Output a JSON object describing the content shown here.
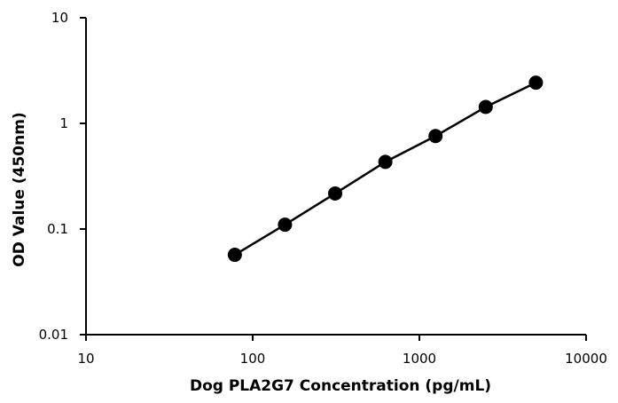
{
  "chart_data": {
    "type": "scatter",
    "x_scale": "log",
    "y_scale": "log",
    "xlabel": "Dog PLA2G7 Concentration (pg/mL)",
    "ylabel": "OD Value (450nm)",
    "xlim": [
      10,
      10000
    ],
    "ylim": [
      0.01,
      10
    ],
    "x_ticks": [
      "10",
      "100",
      "1000",
      "10000"
    ],
    "y_ticks": [
      "0.01",
      "0.1",
      "1",
      "10"
    ],
    "grid": false,
    "legend": "none",
    "series": [
      {
        "x": [
          78.125,
          156.25,
          312.5,
          625,
          1250,
          2500,
          5000
        ],
        "y": [
          0.057,
          0.11,
          0.217,
          0.432,
          0.759,
          1.43,
          2.43
        ],
        "line": true,
        "marker": "circle",
        "color": "#000000"
      }
    ]
  }
}
